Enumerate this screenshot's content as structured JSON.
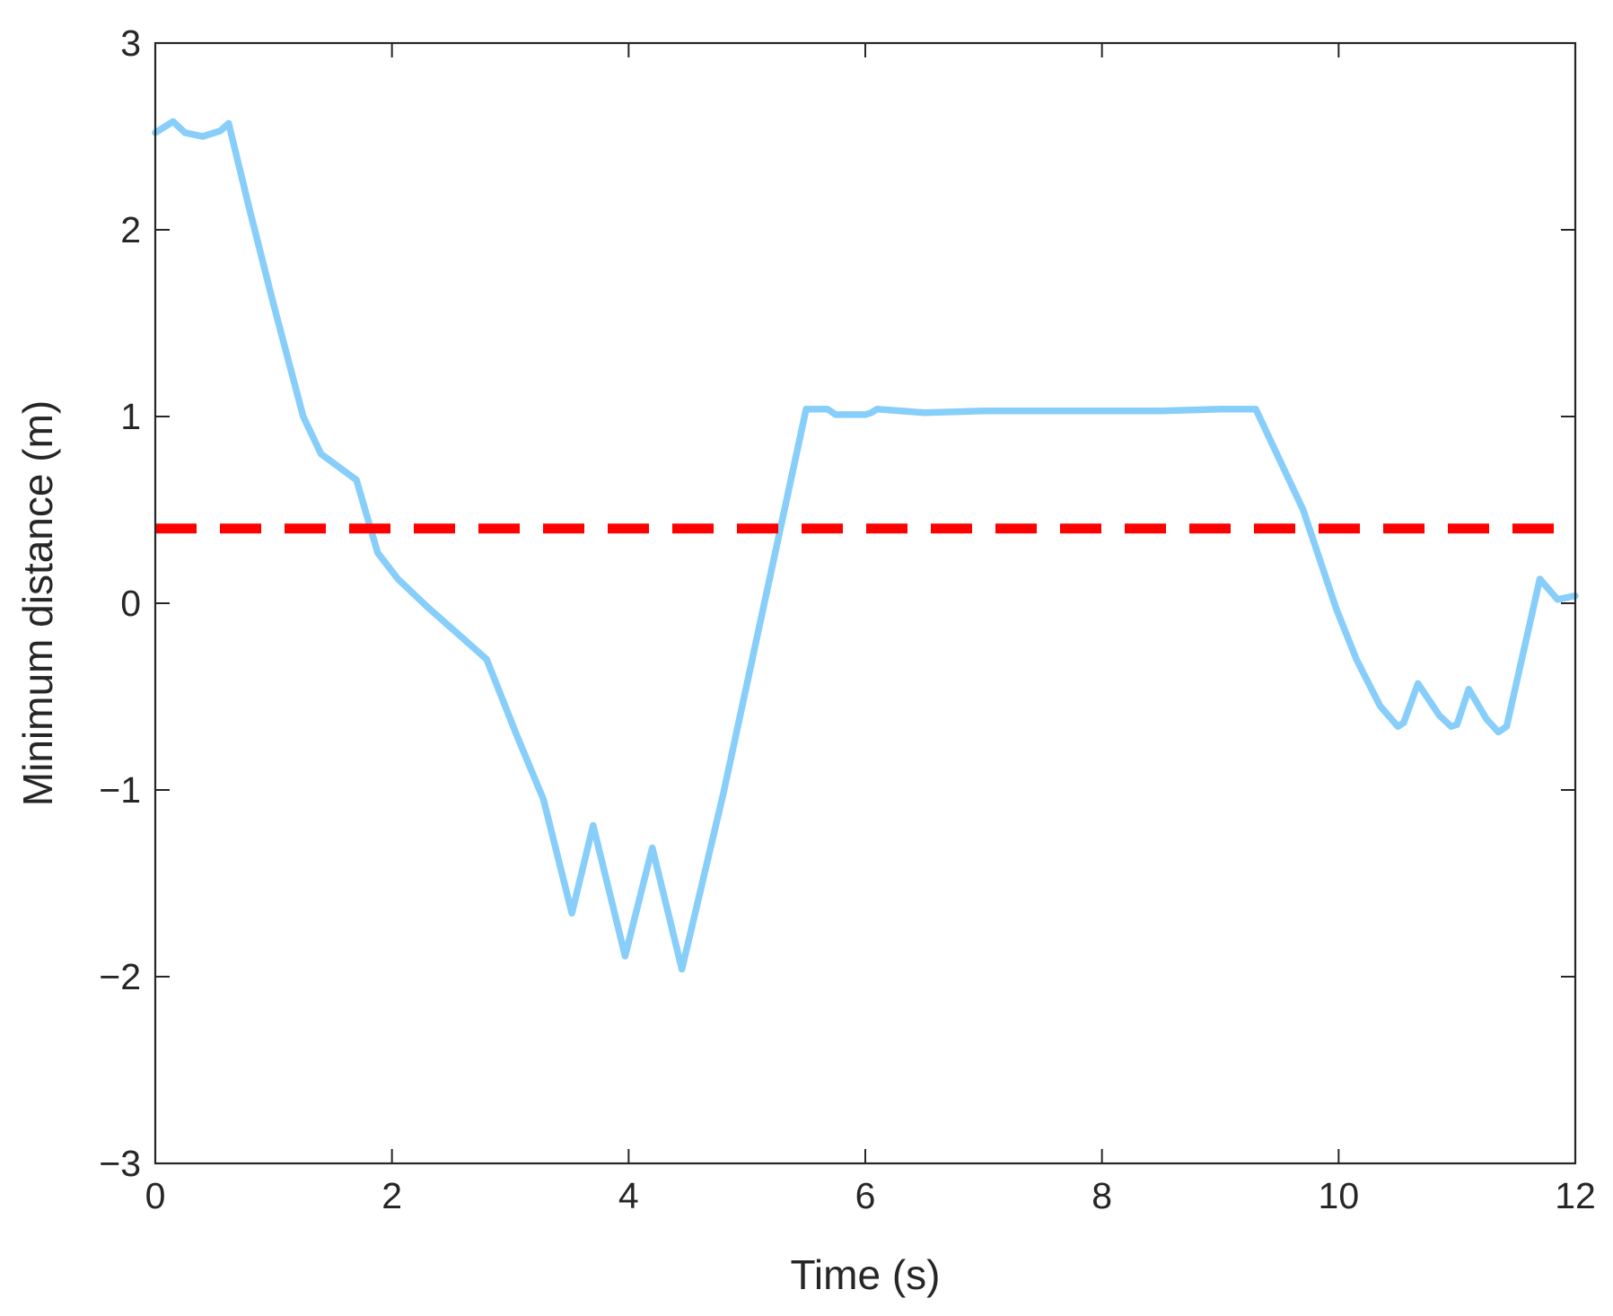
{
  "chart_data": {
    "type": "line",
    "xlabel": "Time (s)",
    "ylabel": "Minimum distance (m)",
    "xlim": [
      0,
      12
    ],
    "ylim": [
      -3,
      3
    ],
    "xticks": [
      "0",
      "2",
      "4",
      "6",
      "8",
      "10",
      "12"
    ],
    "yticks": [
      "−3",
      "−2",
      "−1",
      "0",
      "1",
      "2",
      "3"
    ],
    "grid": false,
    "legend": "none",
    "series": [
      {
        "color": "#87CEFA",
        "style": "solid",
        "x": [
          0,
          0.15,
          0.25,
          0.4,
          0.55,
          0.62,
          0.8,
          1.0,
          1.25,
          1.4,
          1.7,
          1.88,
          2.05,
          2.3,
          2.8,
          3.05,
          3.28,
          3.52,
          3.7,
          3.97,
          4.2,
          4.45,
          4.8,
          5.5,
          5.68,
          5.75,
          6.0,
          6.05,
          6.1,
          6.5,
          7.0,
          8.0,
          8.5,
          9.0,
          9.3,
          9.7,
          9.98,
          10.15,
          10.35,
          10.5,
          10.55,
          10.67,
          10.85,
          10.95,
          11.0,
          11.1,
          11.25,
          11.35,
          11.42,
          11.7,
          11.85,
          12.0
        ],
        "y": [
          2.52,
          2.58,
          2.52,
          2.5,
          2.53,
          2.57,
          2.1,
          1.6,
          1.0,
          0.8,
          0.66,
          0.27,
          0.13,
          -0.02,
          -0.3,
          -0.7,
          -1.05,
          -1.66,
          -1.19,
          -1.89,
          -1.31,
          -1.96,
          -1.02,
          1.04,
          1.04,
          1.01,
          1.01,
          1.02,
          1.04,
          1.02,
          1.03,
          1.03,
          1.03,
          1.04,
          1.04,
          0.5,
          -0.03,
          -0.3,
          -0.55,
          -0.66,
          -0.64,
          -0.43,
          -0.6,
          -0.66,
          -0.65,
          -0.46,
          -0.62,
          -0.69,
          -0.66,
          0.13,
          0.02,
          0.04
        ]
      },
      {
        "color": "#FF0000",
        "style": "dashed",
        "x": [
          0,
          12
        ],
        "y": [
          0.4,
          0.4
        ]
      }
    ]
  }
}
